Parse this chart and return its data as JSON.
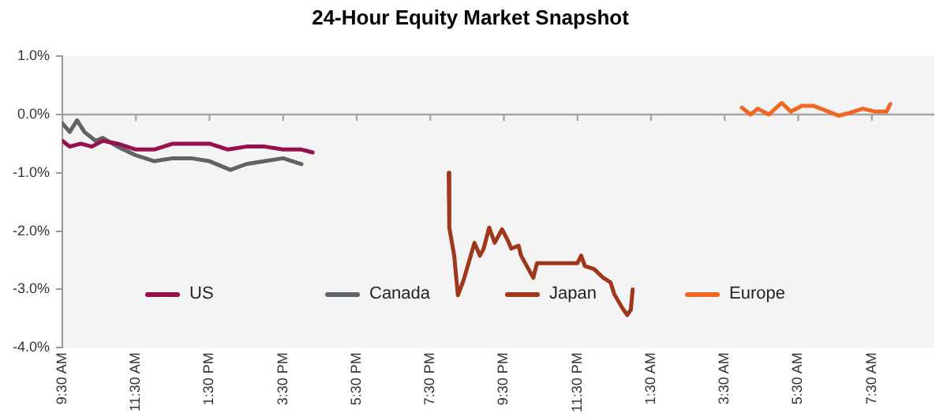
{
  "chart_data": {
    "type": "line",
    "title": "24-Hour Equity Market Snapshot",
    "series": [
      {
        "name": "US",
        "color": "#990f4d",
        "x": [
          "--01-01T09:30",
          "--01-01T09:42",
          "--01-01T10:00",
          "--01-01T10:18",
          "--01-01T10:36",
          "--01-01T11:00",
          "--01-01T11:30",
          "--01-01T12:00",
          "--01-01T12:30",
          "--01-01T12:54",
          "--01-01T13:30",
          "--01-01T14:00",
          "--01-01T14:30",
          "--01-01T15:00",
          "--01-01T15:30",
          "--01-01T16:00",
          "--01-01T16:18"
        ],
        "values": [
          -0.45,
          -0.55,
          -0.5,
          -0.55,
          -0.45,
          -0.5,
          -0.6,
          -0.6,
          -0.5,
          -0.5,
          -0.5,
          -0.6,
          -0.55,
          -0.55,
          -0.6,
          -0.6,
          -0.65
        ]
      },
      {
        "name": "Canada",
        "color": "#5f6469",
        "x": [
          "--01-01T09:30",
          "--01-01T09:42",
          "--01-01T09:54",
          "--01-01T10:06",
          "--01-01T10:24",
          "--01-01T10:36",
          "--01-01T11:00",
          "--01-01T11:30",
          "--01-01T12:00",
          "--01-01T12:30",
          "--01-01T13:00",
          "--01-01T13:30",
          "--01-01T14:04",
          "--01-01T14:30",
          "--01-01T15:00",
          "--01-01T15:30",
          "--01-01T16:00"
        ],
        "values": [
          -0.15,
          -0.3,
          -0.1,
          -0.3,
          -0.45,
          -0.4,
          -0.55,
          -0.7,
          -0.8,
          -0.75,
          -0.75,
          -0.8,
          -0.95,
          -0.85,
          -0.8,
          -0.75,
          -0.85
        ]
      },
      {
        "name": "Japan",
        "color": "#a0361a",
        "x": [
          "--01-01T20:00",
          "--01-01T20:01",
          "--01-01T20:09",
          "--01-01T20:15",
          "--01-01T20:24",
          "--01-01T20:36",
          "--01-01T20:42",
          "--01-01T20:51",
          "--01-01T20:57",
          "--01-01T21:06",
          "--01-01T21:15",
          "--01-01T21:27",
          "--01-01T21:36",
          "--01-01T21:42",
          "--01-01T21:54",
          "--01-01T21:58",
          "--01-01T22:09",
          "--01-01T22:18",
          "--01-01T22:24",
          "--01-01T23:30",
          "--01-01T23:36",
          "--01-01T23:42",
          "--01-01T23:57",
          "--01-02T00:12",
          "--01-02T00:24",
          "--01-02T00:30",
          "--01-02T00:42",
          "--01-02T00:51",
          "--01-02T00:57",
          "--01-02T01:00"
        ],
        "values": [
          -1.0,
          -1.94,
          -2.42,
          -3.1,
          -2.85,
          -2.42,
          -2.2,
          -2.42,
          -2.3,
          -1.94,
          -2.2,
          -1.97,
          -2.15,
          -2.3,
          -2.25,
          -2.42,
          -2.63,
          -2.8,
          -2.55,
          -2.55,
          -2.42,
          -2.6,
          -2.65,
          -2.8,
          -2.88,
          -3.08,
          -3.3,
          -3.44,
          -3.35,
          -3.0
        ]
      },
      {
        "name": "Europe",
        "color": "#f26522",
        "x": [
          "--01-02T03:58",
          "--01-02T04:12",
          "--01-02T04:24",
          "--01-02T04:42",
          "--01-02T05:03",
          "--01-02T05:18",
          "--01-02T05:36",
          "--01-02T05:54",
          "--01-02T06:12",
          "--01-02T06:36",
          "--01-02T06:54",
          "--01-02T07:15",
          "--01-02T07:36",
          "--01-02T07:54",
          "--01-02T08:00"
        ],
        "values": [
          0.12,
          0.0,
          0.1,
          0.0,
          0.2,
          0.05,
          0.15,
          0.15,
          0.08,
          -0.02,
          0.03,
          0.1,
          0.05,
          0.05,
          0.18
        ]
      }
    ],
    "xlim": [
      "--01-01T09:30",
      "--01-02T09:12"
    ],
    "xticks": [
      {
        "value": "--01-01T09:30",
        "label": "9:30 AM"
      },
      {
        "value": "--01-01T11:30",
        "label": "11:30 AM"
      },
      {
        "value": "--01-01T13:30",
        "label": "1:30 PM"
      },
      {
        "value": "--01-01T15:30",
        "label": "3:30 PM"
      },
      {
        "value": "--01-01T17:30",
        "label": "5:30 PM"
      },
      {
        "value": "--01-01T19:30",
        "label": "7:30 PM"
      },
      {
        "value": "--01-01T21:30",
        "label": "9:30 PM"
      },
      {
        "value": "--01-01T23:30",
        "label": "11:30 PM"
      },
      {
        "value": "--01-02T01:30",
        "label": "1:30 AM"
      },
      {
        "value": "--01-02T03:30",
        "label": "3:30 AM"
      },
      {
        "value": "--01-02T05:30",
        "label": "5:30 AM"
      },
      {
        "value": "--01-02T07:30",
        "label": "7:30 AM"
      }
    ],
    "ylim": [
      -4,
      1
    ],
    "yticks": [
      {
        "value": 1,
        "label": "1.0%"
      },
      {
        "value": 0,
        "label": "0.0%"
      },
      {
        "value": -1,
        "label": "-1.0%"
      },
      {
        "value": -2,
        "label": "-2.0%"
      },
      {
        "value": -3,
        "label": "-3.0%"
      },
      {
        "value": -4,
        "label": "-4.0%"
      }
    ],
    "ref_lines": [
      {
        "axis": "y",
        "value": 0,
        "color": "#a6a6a6"
      }
    ],
    "grid": false,
    "legend": "bottom",
    "marker": "none",
    "line_style": "solid"
  }
}
